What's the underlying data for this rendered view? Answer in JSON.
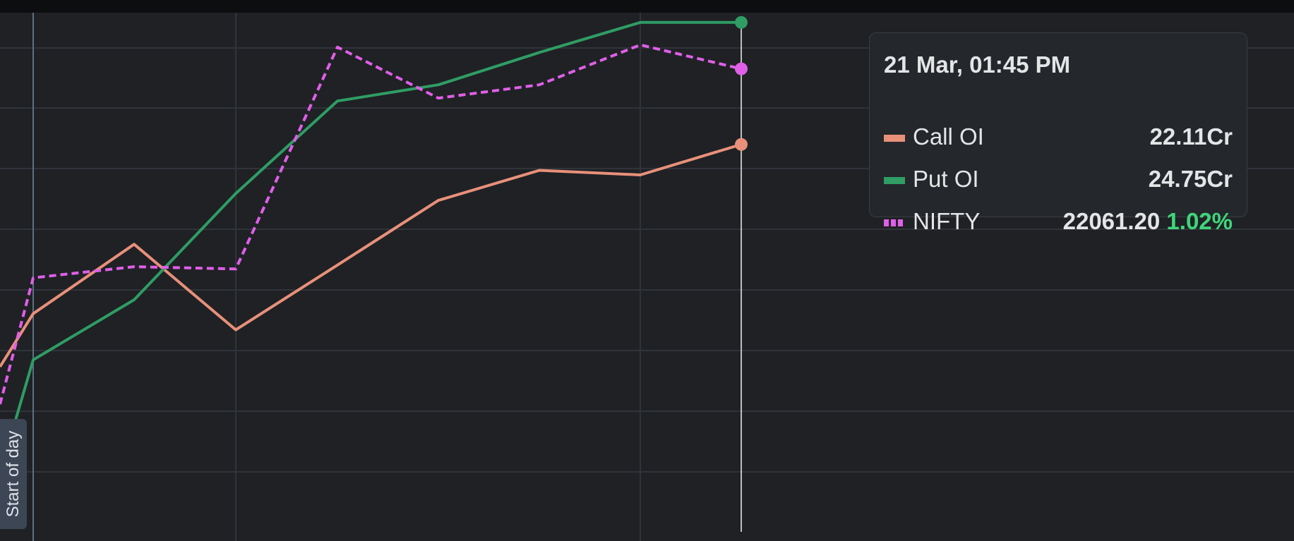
{
  "chart_data": {
    "type": "line",
    "x": [
      "",
      "",
      "",
      "",
      "",
      "",
      "",
      "",
      ""
    ],
    "series": [
      {
        "name": "Call OI",
        "color": "#e8907a",
        "style": "solid",
        "values": [
          17.3,
          18.45,
          19.95,
          18.1,
          19.5,
          20.9,
          21.55,
          21.45,
          22.11
        ]
      },
      {
        "name": "Put OI",
        "color": "#2f9d64",
        "style": "solid",
        "values": [
          15.0,
          17.45,
          18.75,
          21.05,
          23.05,
          23.4,
          24.1,
          24.75,
          24.75
        ]
      },
      {
        "name": "NIFTY",
        "color": "#e05fe8",
        "style": "dotted",
        "values": [
          21910,
          21967,
          21972,
          21971,
          22071,
          22048,
          22054,
          22072,
          22061.2
        ]
      }
    ],
    "ylim_left": [
      13.73,
      24.96
    ],
    "ylim_right": [
      21852.5,
      22086.5
    ],
    "grid": true,
    "vertical_marker": {
      "label": "Start of day"
    },
    "hover_index": 8
  },
  "tooltip": {
    "title": "21 Mar, 01:45 PM",
    "rows": [
      {
        "name": "Call OI",
        "value": "22.11Cr",
        "change": "",
        "swatch_color": "#e8907a",
        "swatch_style": "solid"
      },
      {
        "name": "Put OI",
        "value": "24.75Cr",
        "change": "",
        "swatch_color": "#2f9d64",
        "swatch_style": "solid"
      },
      {
        "name": "NIFTY",
        "value": "22061.20",
        "change": "1.02%",
        "swatch_color": "#e05fe8",
        "swatch_style": "dotted"
      }
    ]
  },
  "start_marker": {
    "label": "Start of day"
  }
}
